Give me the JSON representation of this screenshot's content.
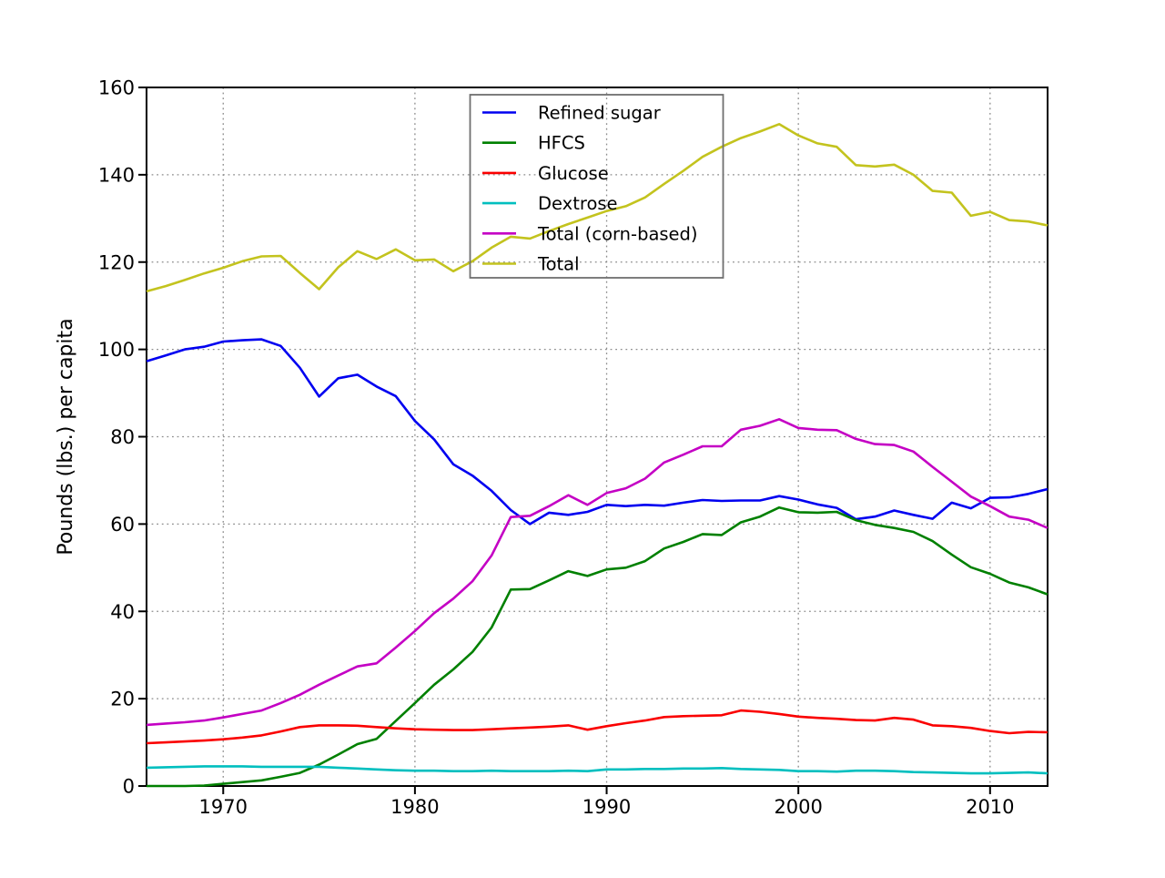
{
  "chart_data": {
    "type": "line",
    "title": "",
    "xlabel": "",
    "ylabel": "Pounds (lbs.) per capita",
    "xlim": [
      1966,
      2013
    ],
    "ylim": [
      0,
      160
    ],
    "xticks": [
      1970,
      1980,
      1990,
      2000,
      2010
    ],
    "yticks": [
      0,
      20,
      40,
      60,
      80,
      100,
      120,
      140,
      160
    ],
    "grid": true,
    "grid_style": "dotted",
    "grid_color": "#8c8c8c",
    "legend_position": "upper-center-inside",
    "legend_border_color": "#6f6f6f",
    "x": [
      1966,
      1967,
      1968,
      1969,
      1970,
      1971,
      1972,
      1973,
      1974,
      1975,
      1976,
      1977,
      1978,
      1979,
      1980,
      1981,
      1982,
      1983,
      1984,
      1985,
      1986,
      1987,
      1988,
      1989,
      1990,
      1991,
      1992,
      1993,
      1994,
      1995,
      1996,
      1997,
      1998,
      1999,
      2000,
      2001,
      2002,
      2003,
      2004,
      2005,
      2006,
      2007,
      2008,
      2009,
      2010,
      2011,
      2012,
      2013
    ],
    "series": [
      {
        "name": "Refined sugar",
        "color": "#0000f0",
        "values": [
          97.3,
          98.6,
          100.0,
          100.6,
          101.8,
          102.1,
          102.3,
          100.8,
          95.8,
          89.2,
          93.4,
          94.2,
          91.5,
          89.3,
          83.6,
          79.4,
          73.7,
          71.1,
          67.6,
          63.2,
          60.0,
          62.6,
          62.1,
          62.8,
          64.4,
          64.1,
          64.4,
          64.2,
          64.9,
          65.5,
          65.3,
          65.4,
          65.4,
          66.4,
          65.6,
          64.5,
          63.7,
          61.1,
          61.7,
          63.1,
          62.1,
          61.2,
          64.9,
          63.6,
          66.0,
          66.1,
          66.9,
          68.0
        ]
      },
      {
        "name": "HFCS",
        "color": "#008000",
        "values": [
          0.0,
          0.0,
          0.0,
          0.1,
          0.5,
          0.9,
          1.3,
          2.1,
          3.0,
          4.9,
          7.2,
          9.6,
          10.8,
          14.9,
          19.0,
          23.2,
          26.7,
          30.7,
          36.3,
          45.0,
          45.1,
          47.1,
          49.2,
          48.1,
          49.6,
          50.0,
          51.5,
          54.4,
          55.9,
          57.7,
          57.5,
          60.4,
          61.7,
          63.8,
          62.7,
          62.6,
          62.8,
          60.9,
          59.8,
          59.1,
          58.2,
          56.1,
          53.0,
          50.1,
          48.6,
          46.6,
          45.5,
          43.9
        ]
      },
      {
        "name": "Glucose",
        "color": "#fa0000",
        "values": [
          9.8,
          10.0,
          10.2,
          10.4,
          10.7,
          11.1,
          11.6,
          12.5,
          13.5,
          13.9,
          13.9,
          13.8,
          13.5,
          13.2,
          13.0,
          12.9,
          12.8,
          12.8,
          13.0,
          13.2,
          13.4,
          13.6,
          13.9,
          12.9,
          13.7,
          14.4,
          15.0,
          15.8,
          16.0,
          16.1,
          16.2,
          17.3,
          17.0,
          16.5,
          15.9,
          15.6,
          15.4,
          15.1,
          15.0,
          15.6,
          15.2,
          13.9,
          13.7,
          13.3,
          12.6,
          12.1,
          12.4,
          12.3
        ]
      },
      {
        "name": "Dextrose",
        "color": "#00bfbf",
        "values": [
          4.2,
          4.3,
          4.4,
          4.5,
          4.5,
          4.5,
          4.4,
          4.4,
          4.4,
          4.4,
          4.2,
          4.0,
          3.8,
          3.6,
          3.5,
          3.5,
          3.4,
          3.4,
          3.5,
          3.4,
          3.4,
          3.4,
          3.5,
          3.4,
          3.8,
          3.8,
          3.9,
          3.9,
          4.0,
          4.0,
          4.1,
          3.9,
          3.8,
          3.7,
          3.4,
          3.4,
          3.3,
          3.5,
          3.5,
          3.4,
          3.2,
          3.1,
          3.0,
          2.9,
          2.9,
          3.0,
          3.1,
          2.9
        ]
      },
      {
        "name": "Total (corn-based)",
        "color": "#c400c4",
        "values": [
          14.0,
          14.3,
          14.6,
          15.0,
          15.7,
          16.5,
          17.3,
          19.0,
          20.9,
          23.2,
          25.3,
          27.4,
          28.1,
          31.7,
          35.5,
          39.6,
          42.9,
          46.9,
          52.8,
          61.6,
          61.9,
          64.1,
          66.6,
          64.4,
          67.1,
          68.2,
          70.4,
          74.1,
          75.9,
          77.8,
          77.8,
          81.6,
          82.5,
          84.0,
          82.0,
          81.6,
          81.5,
          79.5,
          78.3,
          78.1,
          76.6,
          73.1,
          69.7,
          66.3,
          64.1,
          61.7,
          61.0,
          59.1
        ]
      },
      {
        "name": "Total",
        "color": "#c3c31e",
        "values": [
          113.3,
          114.5,
          115.9,
          117.4,
          118.7,
          120.2,
          121.3,
          121.4,
          117.5,
          113.8,
          118.8,
          122.5,
          120.7,
          122.9,
          120.4,
          120.6,
          117.9,
          120.2,
          123.3,
          125.8,
          125.4,
          127.1,
          128.7,
          130.2,
          131.7,
          132.8,
          134.8,
          137.9,
          140.9,
          144.1,
          146.4,
          148.4,
          149.9,
          151.6,
          149.0,
          147.2,
          146.4,
          142.2,
          141.9,
          142.3,
          140.0,
          136.3,
          135.9,
          130.6,
          131.5,
          129.6,
          129.3,
          128.4
        ]
      }
    ]
  }
}
